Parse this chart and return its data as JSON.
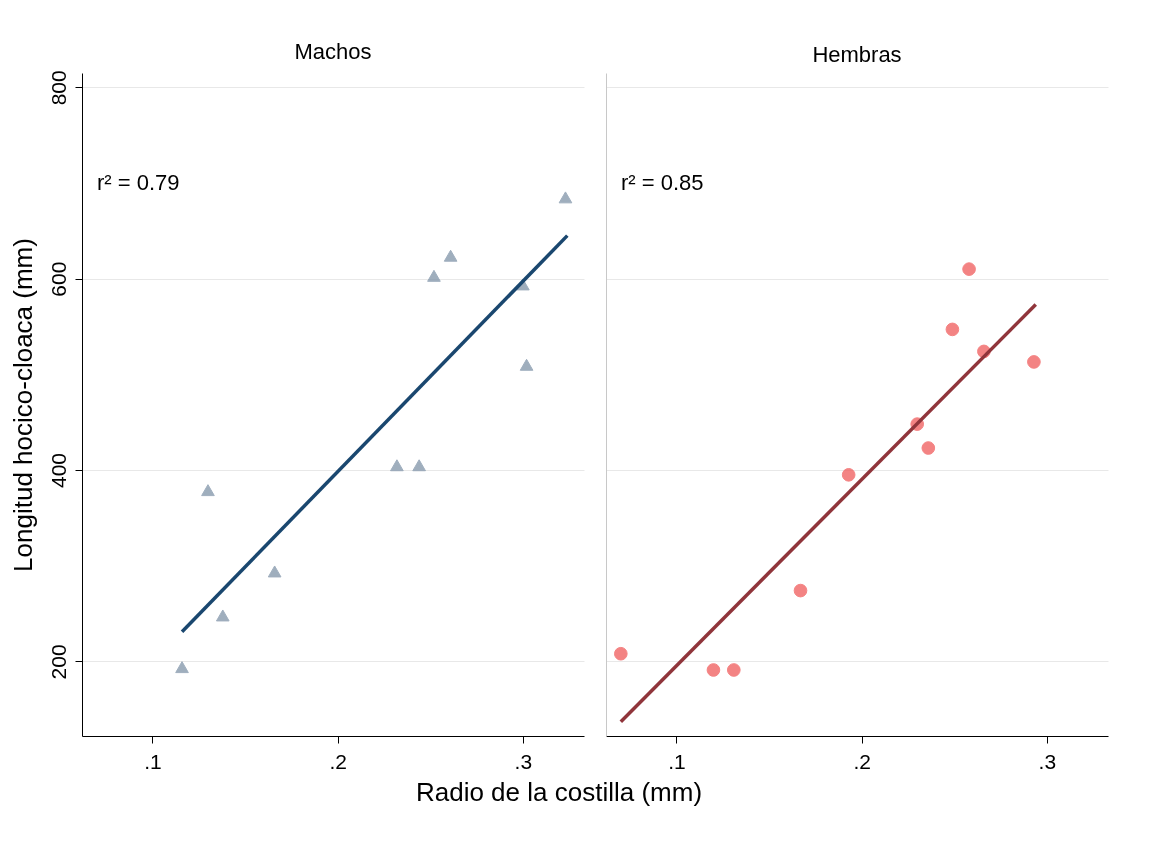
{
  "chart_data": [
    {
      "type": "scatter",
      "title": "Machos",
      "ylabel": "Longitud hocico-cloaca (mm)",
      "xlabel": "Radio de la costilla (mm)",
      "annotations": [
        "r² = 0.79"
      ],
      "xlim": [
        0.062,
        0.333
      ],
      "ylim": [
        122,
        815
      ],
      "xticks": [
        {
          "value": 0.1,
          "label": ".1"
        },
        {
          "value": 0.2,
          "label": ".2"
        },
        {
          "value": 0.3,
          "label": ".3"
        }
      ],
      "yticks": [
        200,
        400,
        600,
        800
      ],
      "grid": "y",
      "series": [
        {
          "marker": "triangle",
          "color": "#7f93a8",
          "x": [
            0.116,
            0.13,
            0.138,
            0.166,
            0.232,
            0.244,
            0.252,
            0.261,
            0.3,
            0.302,
            0.323
          ],
          "values": [
            194,
            379,
            248,
            294,
            405,
            405,
            603,
            624,
            594,
            510,
            685
          ]
        },
        {
          "type": "line",
          "color": "#1a476f",
          "x": [
            0.116,
            0.324
          ],
          "values": [
            231,
            645
          ]
        }
      ]
    },
    {
      "type": "scatter",
      "title": "Hembras",
      "annotations": [
        "r² = 0.85"
      ],
      "xlim": [
        0.062,
        0.333
      ],
      "ylim": [
        122,
        815
      ],
      "xticks": [
        {
          "value": 0.1,
          "label": ".1"
        },
        {
          "value": 0.2,
          "label": ".2"
        },
        {
          "value": 0.3,
          "label": ".3"
        }
      ],
      "yticks": [
        200,
        400,
        600,
        800
      ],
      "grid": "y",
      "tick_labels": "x",
      "series": [
        {
          "marker": "circle",
          "color": "#f05a5a",
          "x": [
            0.07,
            0.12,
            0.131,
            0.167,
            0.193,
            0.23,
            0.236,
            0.249,
            0.258,
            0.266,
            0.293
          ],
          "values": [
            208,
            191,
            191,
            274,
            395,
            448,
            423,
            547,
            610,
            524,
            513
          ]
        },
        {
          "type": "line",
          "color": "#90353b",
          "x": [
            0.07,
            0.294
          ],
          "values": [
            137,
            573
          ]
        }
      ]
    }
  ]
}
